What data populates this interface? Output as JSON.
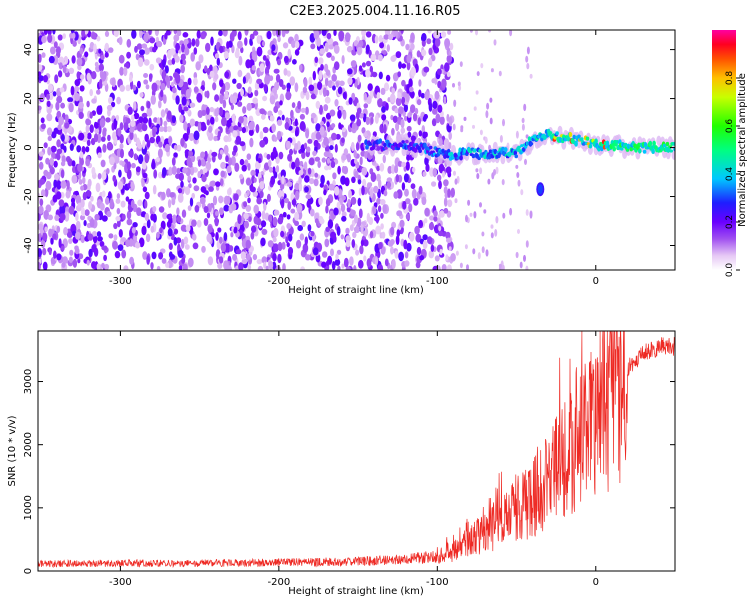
{
  "title": "C2E3.2025.004.11.16.R05",
  "chart_data": [
    {
      "type": "heatmap",
      "name": "spectrogram",
      "xlabel": "Height of straight line (km)",
      "ylabel": "Frequency (Hz)",
      "xlim": [
        -352,
        50
      ],
      "ylim": [
        -50,
        48
      ],
      "xticks": [
        -300,
        -200,
        -100,
        0
      ],
      "yticks": [
        -40,
        -20,
        0,
        20,
        40
      ],
      "noise_region_x": [
        -352,
        -100
      ],
      "signal_track": [
        {
          "x": -145,
          "y": 1
        },
        {
          "x": -120,
          "y": 1
        },
        {
          "x": -100,
          "y": -2
        },
        {
          "x": -90,
          "y": -3
        },
        {
          "x": -80,
          "y": -2
        },
        {
          "x": -70,
          "y": -3
        },
        {
          "x": -60,
          "y": -2
        },
        {
          "x": -50,
          "y": -2
        },
        {
          "x": -45,
          "y": 0
        },
        {
          "x": -40,
          "y": 3
        },
        {
          "x": -30,
          "y": 5
        },
        {
          "x": -20,
          "y": 4
        },
        {
          "x": -10,
          "y": 3
        },
        {
          "x": 0,
          "y": 1
        },
        {
          "x": 10,
          "y": 1
        },
        {
          "x": 20,
          "y": 0
        },
        {
          "x": 30,
          "y": 0
        },
        {
          "x": 50,
          "y": 0
        }
      ],
      "isolated_blob": {
        "x": -35,
        "y": -17
      },
      "colorbar": {
        "label": "Normalized spectral amplitude",
        "range": [
          0.0,
          1.0
        ],
        "ticks": [
          "0.0",
          "0.2",
          "0.4",
          "0.6",
          "0.8"
        ],
        "tick_values": [
          0.0,
          0.2,
          0.4,
          0.6,
          0.8
        ]
      }
    },
    {
      "type": "line",
      "name": "snr",
      "xlabel": "Height of straight line (km)",
      "ylabel": "SNR (10 * v/v)",
      "xlim": [
        -352,
        50
      ],
      "ylim": [
        0,
        3800
      ],
      "xticks": [
        -300,
        -200,
        -100,
        0
      ],
      "yticks": [
        0,
        1000,
        2000,
        3000
      ],
      "color": "#ee2a24",
      "series": [
        {
          "name": "SNR",
          "x": [
            -352,
            -300,
            -250,
            -200,
            -150,
            -120,
            -100,
            -90,
            -80,
            -70,
            -60,
            -50,
            -40,
            -30,
            -20,
            -10,
            0,
            10,
            20,
            30,
            40,
            50
          ],
          "values": [
            120,
            130,
            130,
            140,
            160,
            190,
            250,
            320,
            450,
            600,
            800,
            1000,
            1150,
            1400,
            1800,
            2000,
            2400,
            2800,
            3200,
            3450,
            3550,
            3550
          ]
        }
      ]
    }
  ]
}
